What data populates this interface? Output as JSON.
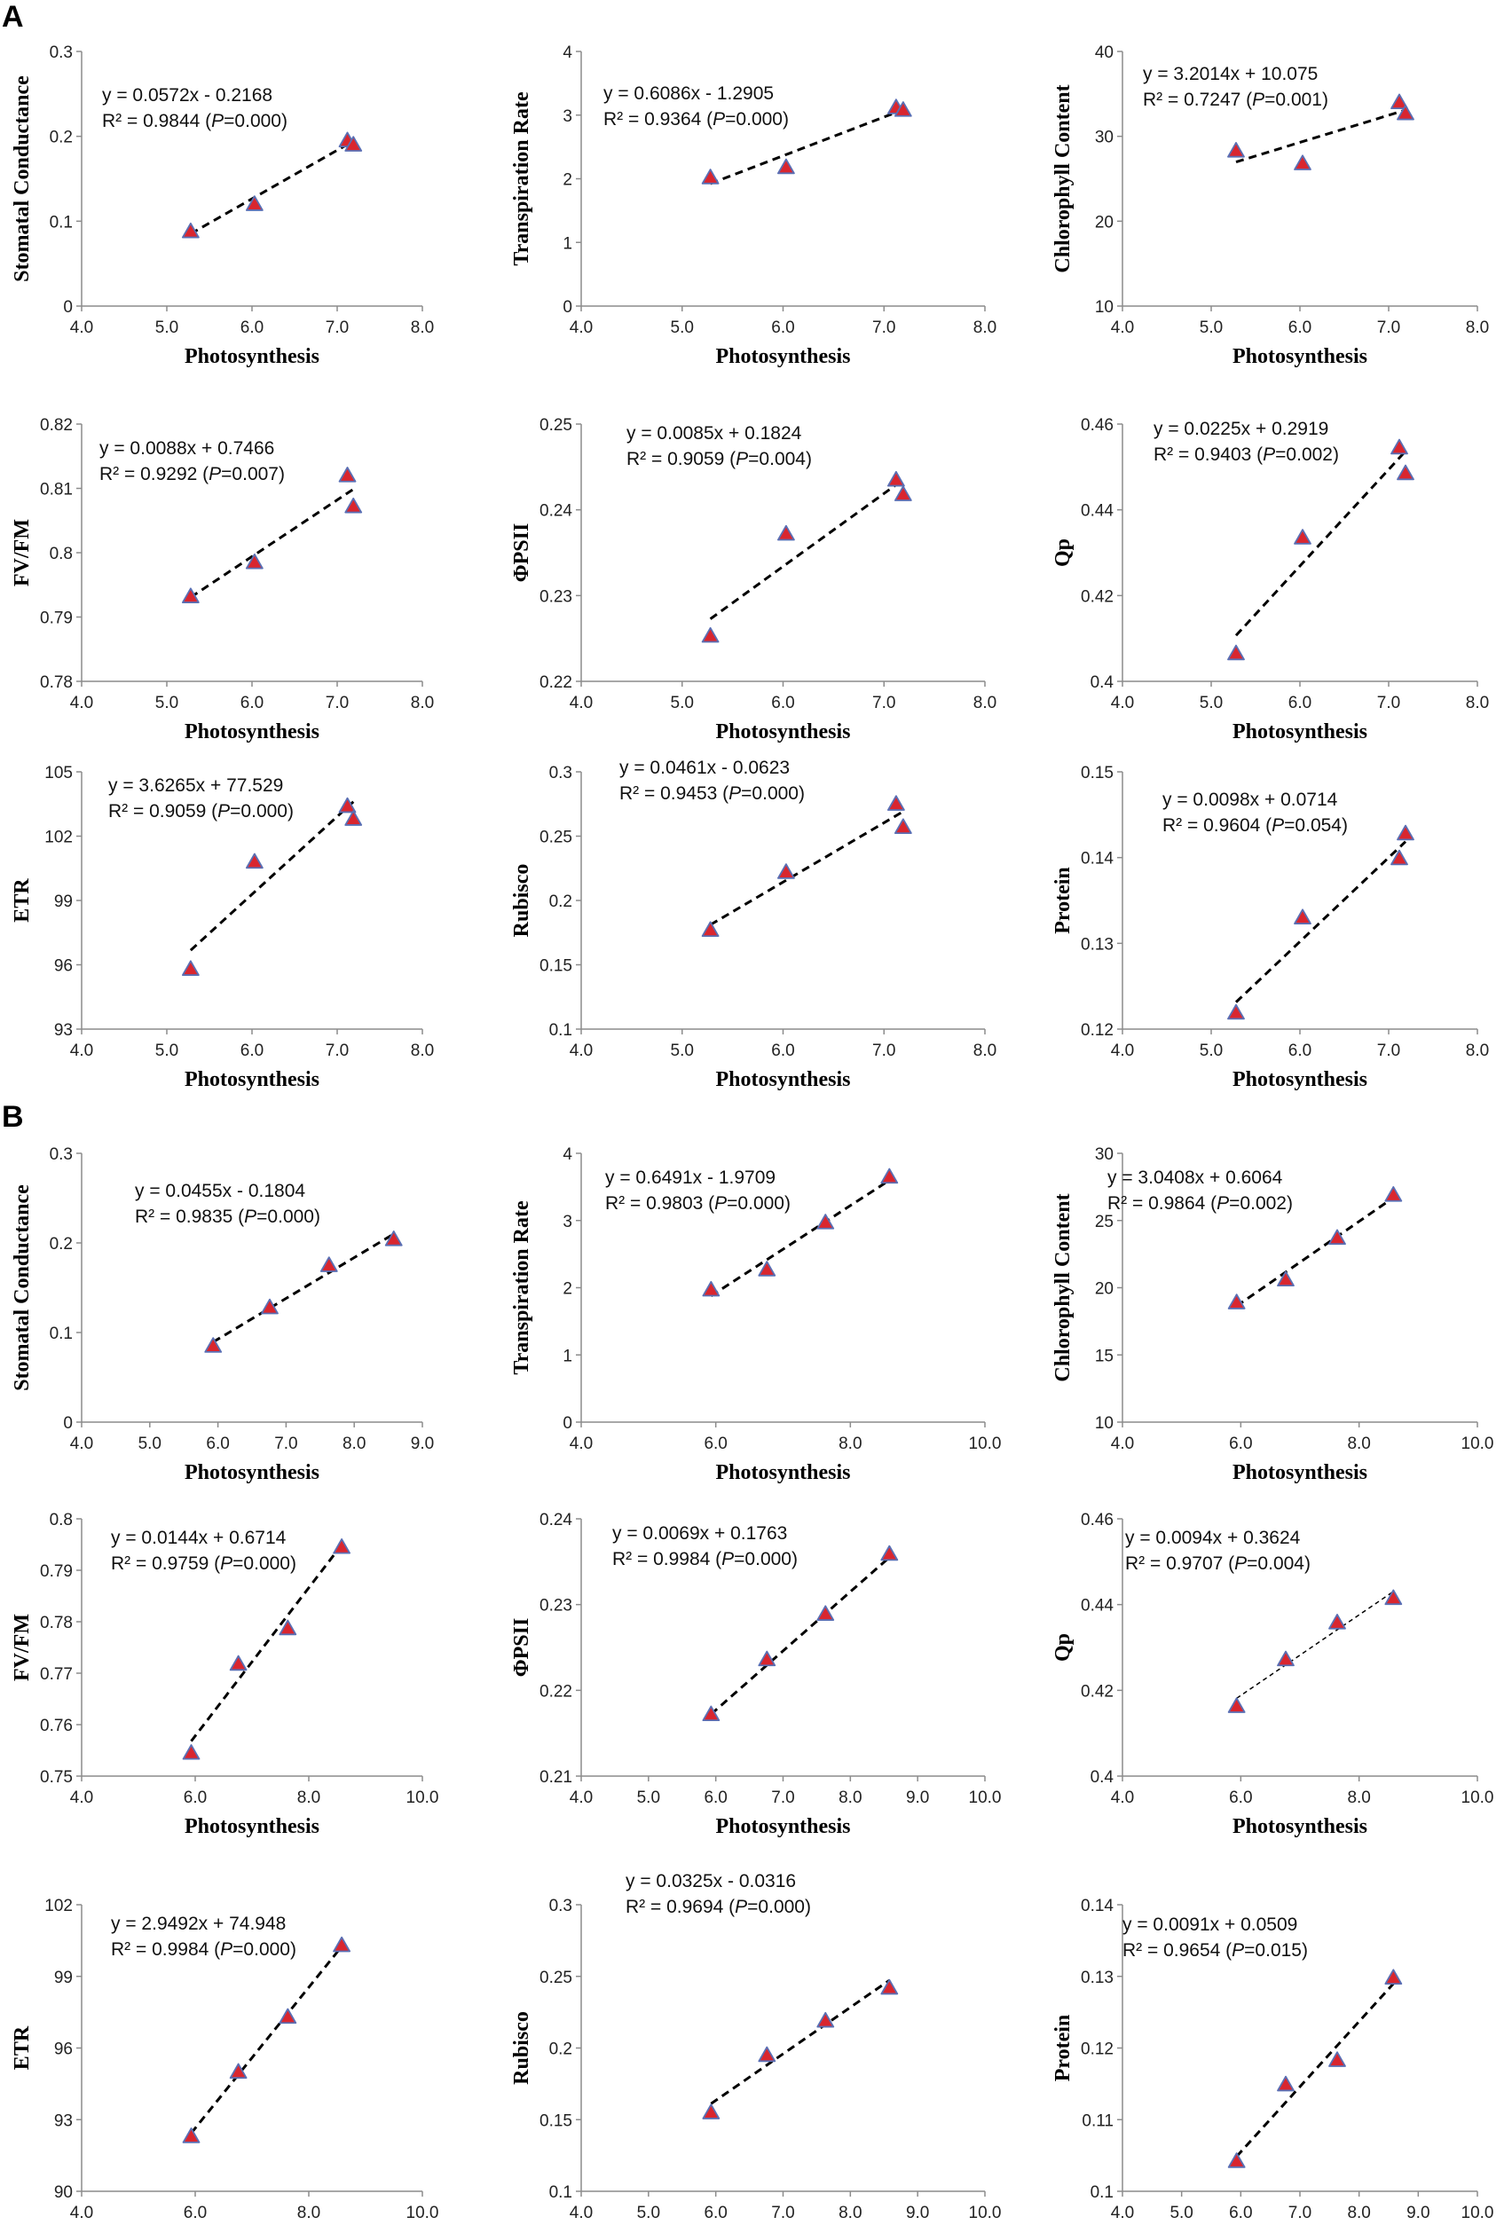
{
  "panels": {
    "A": "A",
    "B": "B"
  },
  "colors": {
    "marker_fill": "#d9262f",
    "marker_edge": "#5a6fb4",
    "trendline": "#000000",
    "axis": "#8c8c8c"
  },
  "chart_data": [
    {
      "id": "A1",
      "panel": "A",
      "type": "scatter",
      "xlabel": "Photosynthesis",
      "ylabel": "Stomatal Conductance",
      "xlim": [
        4.0,
        8.0
      ],
      "xticks": [
        "4.0",
        "5.0",
        "6.0",
        "7.0",
        "8.0"
      ],
      "ylim": [
        0,
        0.3
      ],
      "yticks": [
        "0",
        "0.1",
        "0.2",
        "0.3"
      ],
      "x": [
        5.28,
        6.03,
        7.12,
        7.19
      ],
      "y": [
        0.088,
        0.12,
        0.195,
        0.19
      ],
      "trend": {
        "slope": 0.0572,
        "intercept": -0.2168,
        "x_range": [
          5.28,
          7.19
        ],
        "style": "bold"
      },
      "equation": "y = 0.0572x - 0.2168",
      "r2_prefix": "R² = 0.9844 (",
      "p_italic": "P",
      "r2_suffix": "=0.000)"
    },
    {
      "id": "A2",
      "panel": "A",
      "type": "scatter",
      "xlabel": "Photosynthesis",
      "ylabel": "Transpiration Rate",
      "xlim": [
        4.0,
        8.0
      ],
      "xticks": [
        "4.0",
        "5.0",
        "6.0",
        "7.0",
        "8.0"
      ],
      "ylim": [
        0,
        4
      ],
      "yticks": [
        "0",
        "1",
        "2",
        "3",
        "4"
      ],
      "x": [
        5.28,
        6.03,
        7.12,
        7.19
      ],
      "y": [
        2.02,
        2.18,
        3.12,
        3.08
      ],
      "trend": {
        "slope": 0.6086,
        "intercept": -1.2905,
        "x_range": [
          5.28,
          7.19
        ],
        "style": "bold"
      },
      "equation": "y = 0.6086x - 1.2905",
      "r2_prefix": "R² = 0.9364 (",
      "p_italic": "P",
      "r2_suffix": "=0.000)"
    },
    {
      "id": "A3",
      "panel": "A",
      "type": "scatter",
      "xlabel": "Photosynthesis",
      "ylabel": "Chlorophyll Content",
      "xlim": [
        4.0,
        8.0
      ],
      "xticks": [
        "4.0",
        "5.0",
        "6.0",
        "7.0",
        "8.0"
      ],
      "ylim": [
        10,
        40
      ],
      "yticks": [
        "10",
        "20",
        "30",
        "40"
      ],
      "x": [
        5.28,
        6.03,
        7.12,
        7.19
      ],
      "y": [
        28.3,
        26.8,
        34.0,
        32.7
      ],
      "trend": {
        "slope": 3.2014,
        "intercept": 10.075,
        "x_range": [
          5.28,
          7.19
        ],
        "style": "bold"
      },
      "equation": "y = 3.2014x + 10.075",
      "r2_prefix": "R² = 0.7247 (",
      "p_italic": "P",
      "r2_suffix": "=0.001)"
    },
    {
      "id": "A4",
      "panel": "A",
      "type": "scatter",
      "xlabel": "Photosynthesis",
      "ylabel": "FV/FM",
      "xlim": [
        4.0,
        8.0
      ],
      "xticks": [
        "4.0",
        "5.0",
        "6.0",
        "7.0",
        "8.0"
      ],
      "ylim": [
        0.78,
        0.82
      ],
      "yticks": [
        "0.78",
        "0.79",
        "0.8",
        "0.81",
        "0.82"
      ],
      "x": [
        5.28,
        6.03,
        7.12,
        7.19
      ],
      "y": [
        0.7932,
        0.7985,
        0.812,
        0.8072
      ],
      "trend": {
        "slope": 0.0088,
        "intercept": 0.7466,
        "x_range": [
          5.28,
          7.19
        ],
        "style": "bold"
      },
      "equation": "y = 0.0088x + 0.7466",
      "r2_prefix": "R² = 0.9292 (",
      "p_italic": "P",
      "r2_suffix": "=0.007)"
    },
    {
      "id": "A5",
      "panel": "A",
      "type": "scatter",
      "xlabel": "Photosynthesis",
      "ylabel": "ΦPSII",
      "xlim": [
        4.0,
        8.0
      ],
      "xticks": [
        "4.0",
        "5.0",
        "6.0",
        "7.0",
        "8.0"
      ],
      "ylim": [
        0.22,
        0.25
      ],
      "yticks": [
        "0.22",
        "0.23",
        "0.24",
        "0.25"
      ],
      "x": [
        5.28,
        6.03,
        7.12,
        7.19
      ],
      "y": [
        0.2253,
        0.2372,
        0.2435,
        0.2418
      ],
      "trend": {
        "slope": 0.0085,
        "intercept": 0.1824,
        "x_range": [
          5.28,
          7.19
        ],
        "style": "bold"
      },
      "equation": "y = 0.0085x + 0.1824",
      "r2_prefix": "R² = 0.9059 (",
      "p_italic": "P",
      "r2_suffix": "=0.004)"
    },
    {
      "id": "A6",
      "panel": "A",
      "type": "scatter",
      "xlabel": "Photosynthesis",
      "ylabel": "Qp",
      "xlim": [
        4.0,
        8.0
      ],
      "xticks": [
        "4.0",
        "5.0",
        "6.0",
        "7.0",
        "8.0"
      ],
      "ylim": [
        0.4,
        0.46
      ],
      "yticks": [
        "0.4",
        "0.42",
        "0.44",
        "0.46"
      ],
      "x": [
        5.28,
        6.03,
        7.12,
        7.19
      ],
      "y": [
        0.4065,
        0.4335,
        0.4545,
        0.4485
      ],
      "trend": {
        "slope": 0.0225,
        "intercept": 0.2919,
        "x_range": [
          5.28,
          7.19
        ],
        "style": "bold"
      },
      "equation": "y = 0.0225x + 0.2919",
      "r2_prefix": "R² = 0.9403 (",
      "p_italic": "P",
      "r2_suffix": "=0.002)"
    },
    {
      "id": "A7",
      "panel": "A",
      "type": "scatter",
      "xlabel": "Photosynthesis",
      "ylabel": "ETR",
      "xlim": [
        4.0,
        8.0
      ],
      "xticks": [
        "4.0",
        "5.0",
        "6.0",
        "7.0",
        "8.0"
      ],
      "ylim": [
        93,
        105
      ],
      "yticks": [
        "93",
        "96",
        "99",
        "102",
        "105"
      ],
      "x": [
        5.28,
        6.03,
        7.12,
        7.19
      ],
      "y": [
        95.8,
        100.8,
        103.4,
        102.8
      ],
      "trend": {
        "slope": 3.6265,
        "intercept": 77.529,
        "x_range": [
          5.28,
          7.19
        ],
        "style": "bold"
      },
      "equation": "y = 3.6265x + 77.529",
      "r2_prefix": "R² = 0.9059 (",
      "p_italic": "P",
      "r2_suffix": "=0.000)"
    },
    {
      "id": "A8",
      "panel": "A",
      "type": "scatter",
      "xlabel": "Photosynthesis",
      "ylabel": "Rubisco",
      "xlim": [
        4.0,
        8.0
      ],
      "xticks": [
        "4.0",
        "5.0",
        "6.0",
        "7.0",
        "8.0"
      ],
      "ylim": [
        0.1,
        0.3
      ],
      "yticks": [
        "0.1",
        "0.15",
        "0.2",
        "0.25",
        "0.3"
      ],
      "x": [
        5.28,
        6.03,
        7.12,
        7.19
      ],
      "y": [
        0.177,
        0.222,
        0.275,
        0.257
      ],
      "trend": {
        "slope": 0.0461,
        "intercept": -0.0623,
        "x_range": [
          5.28,
          7.19
        ],
        "style": "bold"
      },
      "equation": "y = 0.0461x - 0.0623",
      "r2_prefix": "R² = 0.9453 (",
      "p_italic": "P",
      "r2_suffix": "=0.000)"
    },
    {
      "id": "A9",
      "panel": "A",
      "type": "scatter",
      "xlabel": "Photosynthesis",
      "ylabel": "Protein",
      "xlim": [
        4.0,
        8.0
      ],
      "xticks": [
        "4.0",
        "5.0",
        "6.0",
        "7.0",
        "8.0"
      ],
      "ylim": [
        0.12,
        0.15
      ],
      "yticks": [
        "0.12",
        "0.13",
        "0.14",
        "0.15"
      ],
      "x": [
        5.28,
        6.03,
        7.12,
        7.19
      ],
      "y": [
        0.1219,
        0.133,
        0.1399,
        0.1428
      ],
      "trend": {
        "slope": 0.0098,
        "intercept": 0.0714,
        "x_range": [
          5.28,
          7.19
        ],
        "style": "bold"
      },
      "equation": "y = 0.0098x + 0.0714",
      "r2_prefix": "R² = 0.9604 (",
      "p_italic": "P",
      "r2_suffix": "=0.054)"
    },
    {
      "id": "B1",
      "panel": "B",
      "type": "scatter",
      "xlabel": "Photosynthesis",
      "ylabel": "Stomatal Conductance",
      "xlim": [
        4.0,
        9.0
      ],
      "xticks": [
        "4.0",
        "5.0",
        "6.0",
        "7.0",
        "8.0",
        "9.0"
      ],
      "ylim": [
        0,
        0.3
      ],
      "yticks": [
        "0",
        "0.1",
        "0.2",
        "0.3"
      ],
      "x": [
        5.93,
        6.76,
        7.63,
        8.58
      ],
      "y": [
        0.085,
        0.128,
        0.175,
        0.204
      ],
      "trend": {
        "slope": 0.0455,
        "intercept": -0.1804,
        "x_range": [
          5.93,
          8.58
        ],
        "style": "bold"
      },
      "equation": "y = 0.0455x - 0.1804",
      "r2_prefix": "R² = 0.9835 (",
      "p_italic": "P",
      "r2_suffix": "=0.000)"
    },
    {
      "id": "B2",
      "panel": "B",
      "type": "scatter",
      "xlabel": "Photosynthesis",
      "ylabel": "Transpiration Rate",
      "xlim": [
        4.0,
        10.0
      ],
      "xticks": [
        "4.0",
        "6.0",
        "8.0",
        "10.0"
      ],
      "ylim": [
        0,
        4
      ],
      "yticks": [
        "0",
        "1",
        "2",
        "3",
        "4"
      ],
      "x": [
        5.93,
        6.76,
        7.63,
        8.58
      ],
      "y": [
        1.97,
        2.27,
        2.97,
        3.65
      ],
      "trend": {
        "slope": 0.6491,
        "intercept": -1.9709,
        "x_range": [
          5.93,
          8.58
        ],
        "style": "bold"
      },
      "equation": "y = 0.6491x - 1.9709",
      "r2_prefix": "R² = 0.9803 (",
      "p_italic": "P",
      "r2_suffix": "=0.000)"
    },
    {
      "id": "B3",
      "panel": "B",
      "type": "scatter",
      "xlabel": "Photosynthesis",
      "ylabel": "Chlorophyll Content",
      "xlim": [
        4.0,
        10.0
      ],
      "xticks": [
        "4.0",
        "6.0",
        "8.0",
        "10.0"
      ],
      "ylim": [
        10,
        30
      ],
      "yticks": [
        "10",
        "15",
        "20",
        "25",
        "30"
      ],
      "x": [
        5.93,
        6.76,
        7.63,
        8.58
      ],
      "y": [
        18.9,
        20.6,
        23.7,
        26.9
      ],
      "trend": {
        "slope": 3.0408,
        "intercept": 0.6064,
        "x_range": [
          5.93,
          8.58
        ],
        "style": "bold"
      },
      "equation": "y = 3.0408x + 0.6064",
      "r2_prefix": "R² = 0.9864 (",
      "p_italic": "P",
      "r2_suffix": "=0.002)"
    },
    {
      "id": "B4",
      "panel": "B",
      "type": "scatter",
      "xlabel": "Photosynthesis",
      "ylabel": "FV/FM",
      "xlim": [
        4.0,
        10.0
      ],
      "xticks": [
        "4.0",
        "6.0",
        "8.0",
        "10.0"
      ],
      "ylim": [
        0.75,
        0.8
      ],
      "yticks": [
        "0.75",
        "0.76",
        "0.77",
        "0.78",
        "0.79",
        "0.8"
      ],
      "x": [
        5.93,
        6.76,
        7.63,
        8.58
      ],
      "y": [
        0.7545,
        0.7718,
        0.7787,
        0.7945
      ],
      "trend": {
        "slope": 0.0144,
        "intercept": 0.6714,
        "x_range": [
          5.93,
          8.58
        ],
        "style": "bold"
      },
      "equation": "y = 0.0144x + 0.6714",
      "r2_prefix": "R² = 0.9759 (",
      "p_italic": "P",
      "r2_suffix": "=0.000)"
    },
    {
      "id": "B5",
      "panel": "B",
      "type": "scatter",
      "xlabel": "Photosynthesis",
      "ylabel": "ΦPSII",
      "xlim": [
        4.0,
        10.0
      ],
      "xticks": [
        "4.0",
        "5.0",
        "6.0",
        "7.0",
        "8.0",
        "9.0",
        "10.0"
      ],
      "ylim": [
        0.21,
        0.24
      ],
      "yticks": [
        "0.21",
        "0.22",
        "0.23",
        "0.24"
      ],
      "x": [
        5.93,
        6.76,
        7.63,
        8.58
      ],
      "y": [
        0.2172,
        0.2236,
        0.2289,
        0.2359
      ],
      "trend": {
        "slope": 0.0069,
        "intercept": 0.1763,
        "x_range": [
          5.93,
          8.58
        ],
        "style": "bold"
      },
      "equation": "y = 0.0069x + 0.1763",
      "r2_prefix": "R² = 0.9984 (",
      "p_italic": "P",
      "r2_suffix": "=0.000)"
    },
    {
      "id": "B6",
      "panel": "B",
      "type": "scatter",
      "xlabel": "Photosynthesis",
      "ylabel": "Qp",
      "xlim": [
        4.0,
        10.0
      ],
      "xticks": [
        "4.0",
        "6.0",
        "8.0",
        "10.0"
      ],
      "ylim": [
        0.4,
        0.46
      ],
      "yticks": [
        "0.4",
        "0.42",
        "0.44",
        "0.46"
      ],
      "x": [
        5.93,
        6.76,
        7.63,
        8.58
      ],
      "y": [
        0.4163,
        0.4272,
        0.4358,
        0.4415
      ],
      "trend": {
        "slope": 0.0094,
        "intercept": 0.3624,
        "x_range": [
          5.93,
          8.58
        ],
        "style": "thin"
      },
      "equation": "y = 0.0094x + 0.3624",
      "r2_prefix": "R² = 0.9707 (",
      "p_italic": "P",
      "r2_suffix": "=0.004)"
    },
    {
      "id": "B7",
      "panel": "B",
      "type": "scatter",
      "xlabel": "Photosynthesis",
      "ylabel": "ETR",
      "xlim": [
        4.0,
        10.0
      ],
      "xticks": [
        "4.0",
        "6.0",
        "8.0",
        "10.0"
      ],
      "ylim": [
        90,
        102
      ],
      "yticks": [
        "90",
        "93",
        "96",
        "99",
        "102"
      ],
      "x": [
        5.93,
        6.76,
        7.63,
        8.58
      ],
      "y": [
        92.3,
        95.0,
        97.3,
        100.3
      ],
      "trend": {
        "slope": 2.9492,
        "intercept": 74.948,
        "x_range": [
          5.93,
          8.58
        ],
        "style": "bold"
      },
      "equation": "y = 2.9492x + 74.948",
      "r2_prefix": "R² = 0.9984 (",
      "p_italic": "P",
      "r2_suffix": "=0.000)"
    },
    {
      "id": "B8",
      "panel": "B",
      "type": "scatter",
      "xlabel": "Photosynthesis",
      "ylabel": "Rubisco",
      "xlim": [
        4.0,
        10.0
      ],
      "xticks": [
        "4.0",
        "5.0",
        "6.0",
        "7.0",
        "8.0",
        "9.0",
        "10.0"
      ],
      "ylim": [
        0.1,
        0.3
      ],
      "yticks": [
        "0.1",
        "0.15",
        "0.2",
        "0.25",
        "0.3"
      ],
      "x": [
        5.93,
        6.76,
        7.63,
        8.58
      ],
      "y": [
        0.155,
        0.195,
        0.219,
        0.242
      ],
      "trend": {
        "slope": 0.0325,
        "intercept": -0.0316,
        "x_range": [
          5.93,
          8.58
        ],
        "style": "bold"
      },
      "equation": "y = 0.0325x - 0.0316",
      "r2_prefix": "R² = 0.9694 (",
      "p_italic": "P",
      "r2_suffix": "=0.000)"
    },
    {
      "id": "B9",
      "panel": "B",
      "type": "scatter",
      "xlabel": "Photosynthesis",
      "ylabel": "Protein",
      "xlim": [
        4.0,
        10.0
      ],
      "xticks": [
        "4.0",
        "5.0",
        "6.0",
        "7.0",
        "8.0",
        "9.0",
        "10.0"
      ],
      "ylim": [
        0.1,
        0.14
      ],
      "yticks": [
        "0.1",
        "0.11",
        "0.12",
        "0.13",
        "0.14"
      ],
      "x": [
        5.93,
        6.76,
        7.63,
        8.58
      ],
      "y": [
        0.1042,
        0.1149,
        0.1183,
        0.1298
      ],
      "trend": {
        "slope": 0.0091,
        "intercept": 0.0509,
        "x_range": [
          5.93,
          8.58
        ],
        "style": "bold"
      },
      "equation": "y = 0.0091x + 0.0509",
      "r2_prefix": "R² = 0.9654 (",
      "p_italic": "P",
      "r2_suffix": "=0.015)"
    }
  ]
}
